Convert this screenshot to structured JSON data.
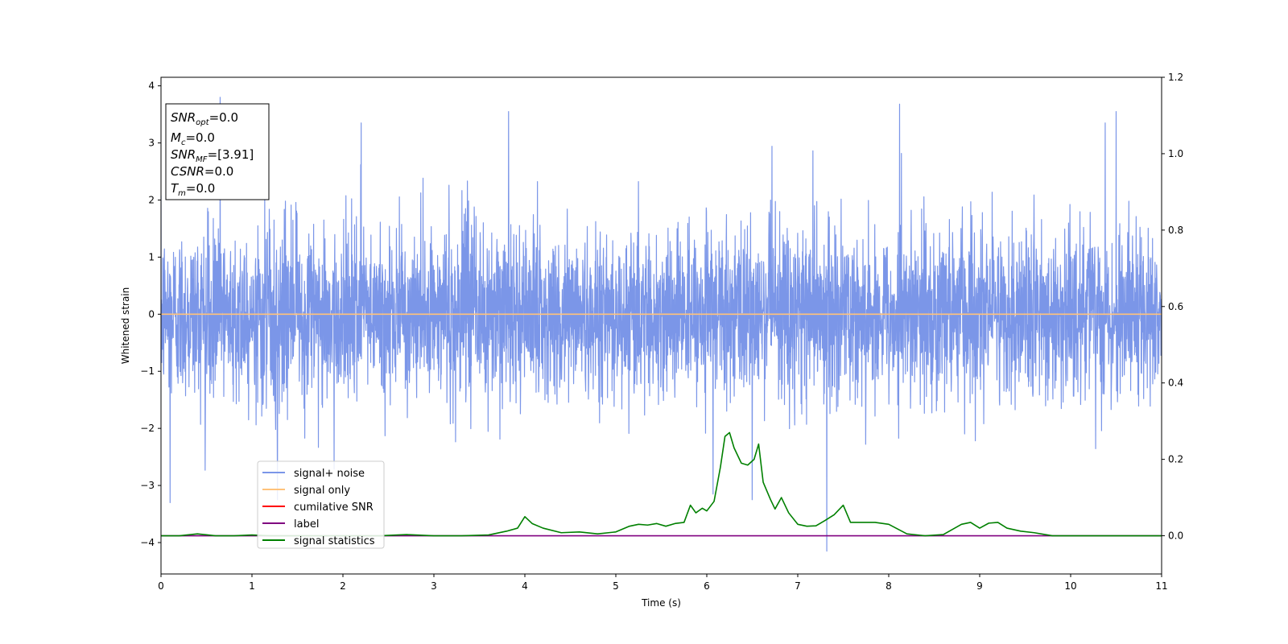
{
  "chart_data": {
    "type": "line",
    "xlabel": "Time (s)",
    "ylabel": "Whitened strain",
    "xlim": [
      0,
      11
    ],
    "ylim": [
      -4.55,
      4.15
    ],
    "y2lim": [
      -0.1,
      1.2
    ],
    "x_ticks": [
      0,
      1,
      2,
      3,
      4,
      5,
      6,
      7,
      8,
      9,
      10,
      11
    ],
    "y_ticks": [
      -4,
      -3,
      -2,
      -1,
      0,
      1,
      2,
      3,
      4
    ],
    "y2_ticks": [
      "0.0",
      "0.2",
      "0.4",
      "0.6",
      "0.8",
      "1.0",
      "1.2"
    ],
    "grid": false,
    "legend_position": "lower-left",
    "info_box": [
      {
        "base": "SNR",
        "sub": "opt",
        "value": "=0.0"
      },
      {
        "base": "M",
        "sub": "c",
        "value": "=0.0"
      },
      {
        "base": "SNR",
        "sub": "MF",
        "value": "=[3.91]"
      },
      {
        "base": "CSNR",
        "sub": "",
        "value": "=0.0"
      },
      {
        "base": "T",
        "sub": "m",
        "value": "=0.0"
      }
    ],
    "series": [
      {
        "name": "signal+ noise",
        "color": "#7b96e8",
        "axis": "left",
        "style": "noise",
        "noise_sigma": 0.75,
        "peaks": [
          [
            0.1,
            -3.3
          ],
          [
            0.65,
            3.8
          ],
          [
            1.28,
            -3.25
          ],
          [
            2.2,
            3.35
          ],
          [
            3.82,
            3.55
          ],
          [
            6.07,
            -3.15
          ],
          [
            6.5,
            -3.25
          ],
          [
            7.32,
            -4.15
          ],
          [
            8.12,
            3.68
          ],
          [
            10.38,
            3.35
          ],
          [
            10.5,
            3.55
          ]
        ]
      },
      {
        "name": "signal only",
        "color": "#ffc27a",
        "axis": "left",
        "style": "flat",
        "value": 0.0
      },
      {
        "name": "cumilative SNR",
        "color": "#ff0000",
        "axis": "right",
        "style": "none"
      },
      {
        "name": "label",
        "color": "#800080",
        "axis": "right",
        "style": "flat",
        "value": 0.0
      },
      {
        "name": "signal statistics",
        "color": "#008000",
        "axis": "right",
        "style": "line",
        "x": [
          0,
          0.2,
          0.4,
          0.6,
          0.8,
          1.0,
          1.2,
          1.5,
          1.8,
          2.1,
          2.4,
          2.7,
          3.0,
          3.3,
          3.6,
          3.8,
          3.92,
          4.0,
          4.08,
          4.2,
          4.4,
          4.6,
          4.8,
          5.0,
          5.15,
          5.25,
          5.35,
          5.45,
          5.55,
          5.65,
          5.75,
          5.82,
          5.88,
          5.95,
          6.0,
          6.08,
          6.15,
          6.2,
          6.25,
          6.3,
          6.38,
          6.45,
          6.52,
          6.57,
          6.62,
          6.7,
          6.75,
          6.82,
          6.9,
          7.0,
          7.1,
          7.2,
          7.3,
          7.4,
          7.5,
          7.58,
          7.7,
          7.85,
          8.0,
          8.2,
          8.4,
          8.6,
          8.8,
          8.9,
          9.0,
          9.1,
          9.2,
          9.3,
          9.45,
          9.6,
          9.8,
          10.0,
          10.3,
          10.6,
          11.0
        ],
        "y": [
          0.0,
          0.0,
          0.005,
          0.0,
          0.0,
          0.002,
          0.0,
          0.0,
          0.0,
          0.0,
          0.0,
          0.003,
          0.0,
          0.0,
          0.002,
          0.012,
          0.02,
          0.05,
          0.032,
          0.02,
          0.008,
          0.01,
          0.005,
          0.01,
          0.025,
          0.03,
          0.028,
          0.032,
          0.025,
          0.032,
          0.035,
          0.08,
          0.06,
          0.072,
          0.065,
          0.09,
          0.18,
          0.26,
          0.27,
          0.23,
          0.19,
          0.185,
          0.2,
          0.24,
          0.14,
          0.095,
          0.07,
          0.1,
          0.06,
          0.03,
          0.025,
          0.026,
          0.04,
          0.055,
          0.08,
          0.035,
          0.035,
          0.035,
          0.03,
          0.005,
          0.0,
          0.003,
          0.03,
          0.035,
          0.02,
          0.033,
          0.035,
          0.02,
          0.012,
          0.008,
          0.0,
          0.0,
          0.0,
          0.0,
          0.0
        ]
      }
    ]
  }
}
